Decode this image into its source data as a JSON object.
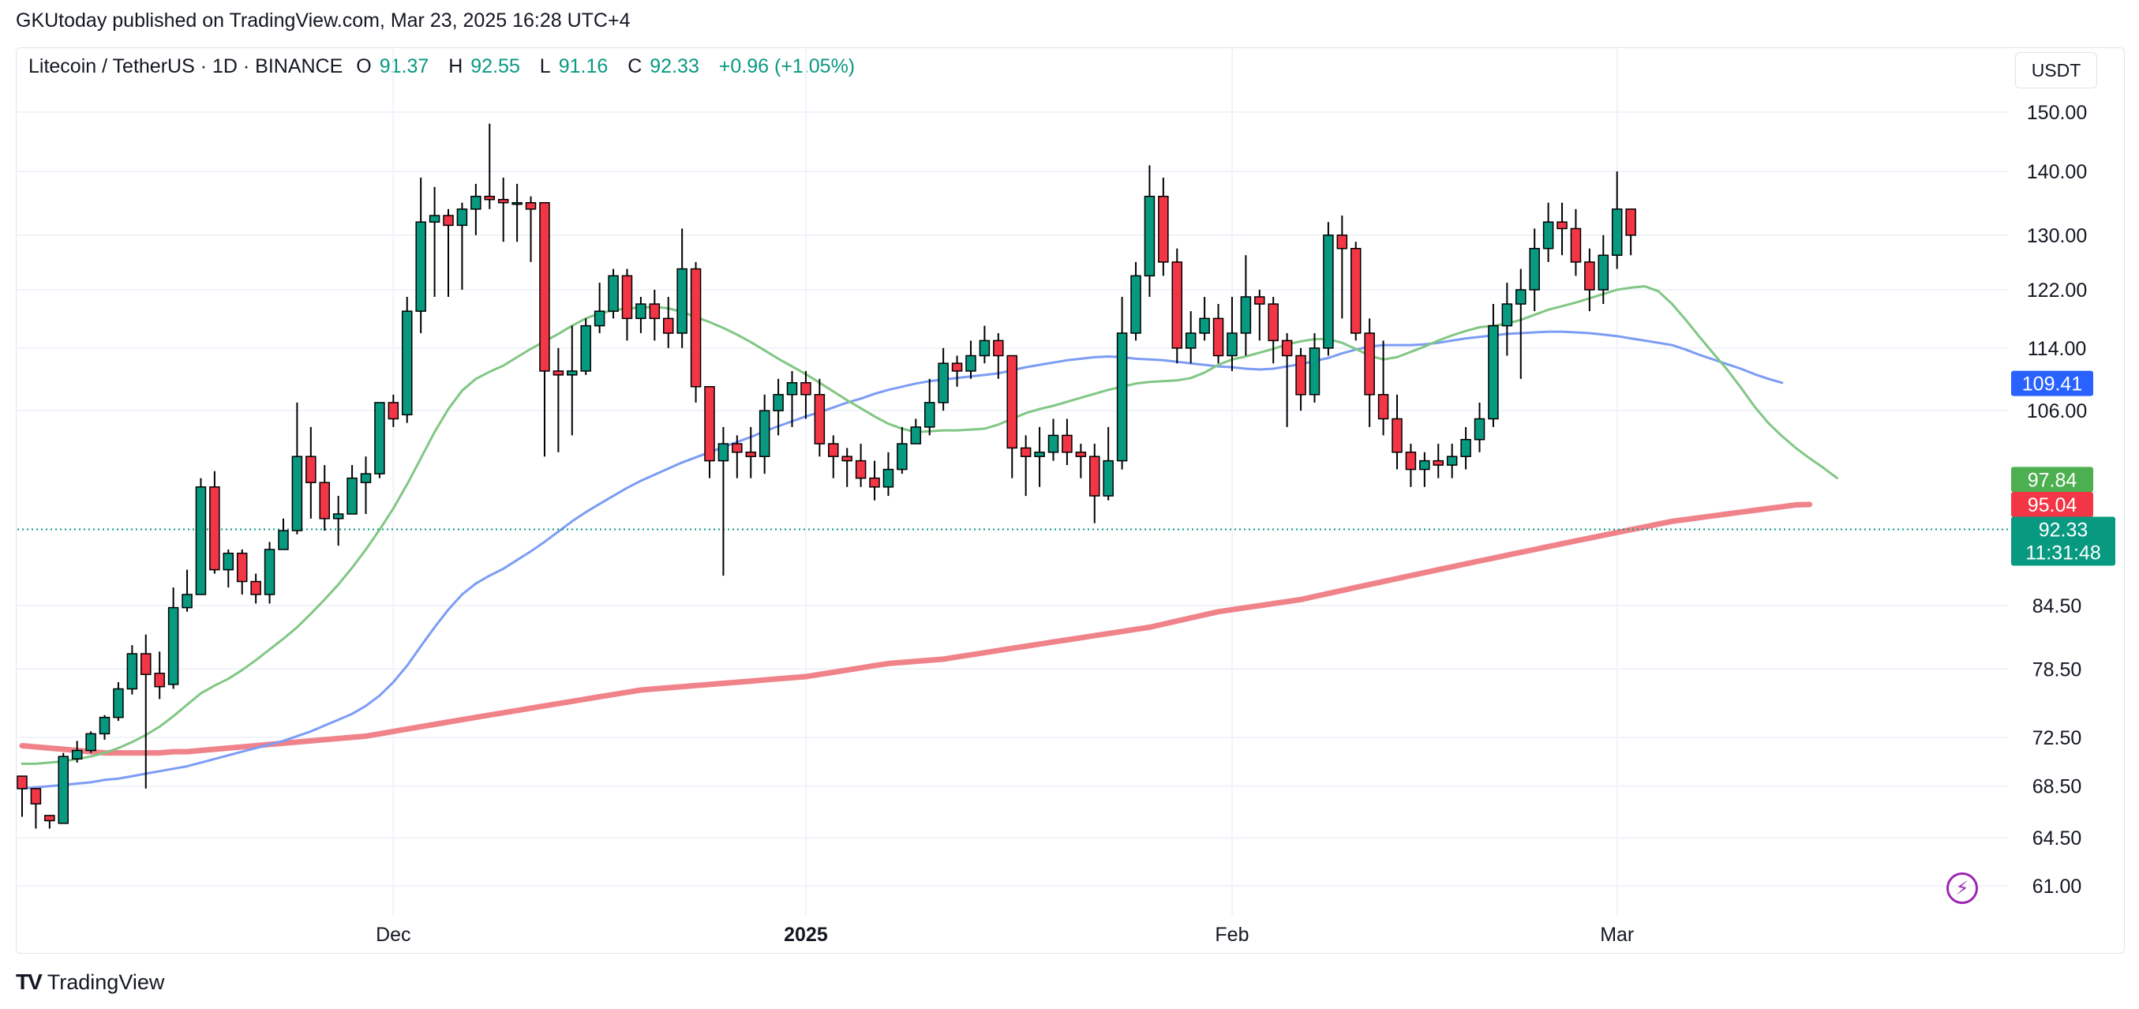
{
  "header": {
    "published": "GKUtoday published on TradingView.com, Mar 23, 2025 16:28 UTC+4",
    "symbol": "Litecoin / TetherUS · 1D · BINANCE",
    "o_label": "O",
    "o_value": "91.37",
    "h_label": "H",
    "h_value": "92.55",
    "l_label": "L",
    "l_value": "91.16",
    "c_label": "C",
    "c_value": "92.33",
    "change": "+0.96 (+1.05%)"
  },
  "currency_button": "USDT",
  "brand": {
    "logo_text": "TV",
    "name": "TradingView"
  },
  "colors": {
    "up": "#089981",
    "down": "#f23645",
    "ma_fast": "#81c784",
    "ma_mid": "#7c9cf5",
    "ma_slow": "#f0828a",
    "grid": "#f0f3fa"
  },
  "chart_data": {
    "type": "candlestick",
    "y_scale": "log",
    "y_ticks": [
      "150.00",
      "140.00",
      "130.00",
      "122.00",
      "114.00",
      "106.00",
      "84.50",
      "78.50",
      "72.50",
      "68.50",
      "64.50",
      "61.00"
    ],
    "x_ticks": [
      {
        "label": "Dec",
        "bar": 27,
        "bold": false
      },
      {
        "label": "2025",
        "bar": 57,
        "bold": true
      },
      {
        "label": "Feb",
        "bar": 88,
        "bold": false
      },
      {
        "label": "Mar",
        "bar": 116,
        "bold": false
      }
    ],
    "candles": [
      [
        69.3,
        68.3,
        66.1,
        69.3
      ],
      [
        68.3,
        67.1,
        65.2,
        68.3
      ],
      [
        66.2,
        65.8,
        65.2,
        65.8
      ],
      [
        65.6,
        70.9,
        65.6,
        71.2
      ],
      [
        70.7,
        71.4,
        70.4,
        72.2
      ],
      [
        71.4,
        72.8,
        71.2,
        73.0
      ],
      [
        72.8,
        74.2,
        72.3,
        74.4
      ],
      [
        74.2,
        76.7,
        73.9,
        77.3
      ],
      [
        76.7,
        79.9,
        76.2,
        80.7
      ],
      [
        79.9,
        78.0,
        68.3,
        81.7
      ],
      [
        78.1,
        76.9,
        75.8,
        80.1
      ],
      [
        77.1,
        84.3,
        76.7,
        86.3
      ],
      [
        84.3,
        85.6,
        83.9,
        88.1
      ],
      [
        85.6,
        97.0,
        85.6,
        98.0
      ],
      [
        97.0,
        88.1,
        87.7,
        98.8
      ],
      [
        88.1,
        89.8,
        86.3,
        90.2
      ],
      [
        89.8,
        86.9,
        85.6,
        90.2
      ],
      [
        86.9,
        85.6,
        84.7,
        87.7
      ],
      [
        85.6,
        90.2,
        84.7,
        91.0
      ],
      [
        90.2,
        92.2,
        90.2,
        93.5
      ],
      [
        92.2,
        100.5,
        91.8,
        107.0
      ],
      [
        100.5,
        97.5,
        93.5,
        104.0
      ],
      [
        97.5,
        93.5,
        92.2,
        99.5
      ],
      [
        93.5,
        94.0,
        90.6,
        96.0
      ],
      [
        94.0,
        98.0,
        94.0,
        99.5
      ],
      [
        97.5,
        98.5,
        94.0,
        100.5
      ],
      [
        98.5,
        107.0,
        98.0,
        107.0
      ],
      [
        107.0,
        105.0,
        104.0,
        108.0
      ],
      [
        105.5,
        119.0,
        104.5,
        121.0
      ],
      [
        119.0,
        132.0,
        116.0,
        139.0
      ],
      [
        132.0,
        133.0,
        121.0,
        137.5
      ],
      [
        133.0,
        131.5,
        121.0,
        134.0
      ],
      [
        131.5,
        134.0,
        122.0,
        135.0
      ],
      [
        134.0,
        136.0,
        130.0,
        138.0
      ],
      [
        136.0,
        135.5,
        134.0,
        148.0
      ],
      [
        135.5,
        135.0,
        129.0,
        139.0
      ],
      [
        135.0,
        135.0,
        129.0,
        138.0
      ],
      [
        135.0,
        134.0,
        126.0,
        136.0
      ],
      [
        135.0,
        111.0,
        100.5,
        135.0
      ],
      [
        111.0,
        110.5,
        101.0,
        114.0
      ],
      [
        110.5,
        111.0,
        103.0,
        117.0
      ],
      [
        111.0,
        117.0,
        110.5,
        118.0
      ],
      [
        117.0,
        119.0,
        116.0,
        123.0
      ],
      [
        119.0,
        124.0,
        118.0,
        125.0
      ],
      [
        124.0,
        118.0,
        115.0,
        125.0
      ],
      [
        118.0,
        120.0,
        116.0,
        121.0
      ],
      [
        120.0,
        118.0,
        115.0,
        122.0
      ],
      [
        118.0,
        116.0,
        114.0,
        121.0
      ],
      [
        116.0,
        125.0,
        114.0,
        131.0
      ],
      [
        125.0,
        109.0,
        107.0,
        126.0
      ],
      [
        109.0,
        100.0,
        98.0,
        109.0
      ],
      [
        100.0,
        102.0,
        87.5,
        104.0
      ],
      [
        102.0,
        101.0,
        98.0,
        103.0
      ],
      [
        101.0,
        100.5,
        98.0,
        104.0
      ],
      [
        100.5,
        106.0,
        98.5,
        108.0
      ],
      [
        106.0,
        108.0,
        103.0,
        110.0
      ],
      [
        108.0,
        109.5,
        104.0,
        111.0
      ],
      [
        109.5,
        108.0,
        105.0,
        111.0
      ],
      [
        108.0,
        102.0,
        100.5,
        110.0
      ],
      [
        102.0,
        100.5,
        98.0,
        103.0
      ],
      [
        100.5,
        100.0,
        97.0,
        101.5
      ],
      [
        100.0,
        98.0,
        97.0,
        102.0
      ],
      [
        98.0,
        97.0,
        95.5,
        100.0
      ],
      [
        97.0,
        99.0,
        96.0,
        101.0
      ],
      [
        99.0,
        102.0,
        98.5,
        104.0
      ],
      [
        102.0,
        104.0,
        102.0,
        105.0
      ],
      [
        104.0,
        107.0,
        103.0,
        110.0
      ],
      [
        107.0,
        112.0,
        106.0,
        114.0
      ],
      [
        112.0,
        111.0,
        109.0,
        113.0
      ],
      [
        111.0,
        113.0,
        110.0,
        115.0
      ],
      [
        113.0,
        115.0,
        112.0,
        117.0
      ],
      [
        115.0,
        113.0,
        110.0,
        116.0
      ],
      [
        113.0,
        101.5,
        98.0,
        113.0
      ],
      [
        101.5,
        100.5,
        96.0,
        103.0
      ],
      [
        100.5,
        101.0,
        97.0,
        104.0
      ],
      [
        101.0,
        103.0,
        100.0,
        105.0
      ],
      [
        103.0,
        101.0,
        99.5,
        105.0
      ],
      [
        101.0,
        100.5,
        98.0,
        102.0
      ],
      [
        100.5,
        96.0,
        93.0,
        102.0
      ],
      [
        96.0,
        100.0,
        95.5,
        104.0
      ],
      [
        100.0,
        116.0,
        99.0,
        121.0
      ],
      [
        116.0,
        124.0,
        115.0,
        126.0
      ],
      [
        124.0,
        136.0,
        121.0,
        141.0
      ],
      [
        136.0,
        126.0,
        124.0,
        139.0
      ],
      [
        126.0,
        114.0,
        112.0,
        128.0
      ],
      [
        114.0,
        116.0,
        112.0,
        119.0
      ],
      [
        116.0,
        118.0,
        115.0,
        121.0
      ],
      [
        118.0,
        113.0,
        112.0,
        120.0
      ],
      [
        113.0,
        116.0,
        111.0,
        121.0
      ],
      [
        116.0,
        121.0,
        113.0,
        127.0
      ],
      [
        121.0,
        120.0,
        115.0,
        122.0
      ],
      [
        120.0,
        115.0,
        112.0,
        121.0
      ],
      [
        115.0,
        113.0,
        104.0,
        116.0
      ],
      [
        113.0,
        108.0,
        106.0,
        114.0
      ],
      [
        108.0,
        114.0,
        107.0,
        116.0
      ],
      [
        114.0,
        130.0,
        113.0,
        132.0
      ],
      [
        130.0,
        128.0,
        118.0,
        133.0
      ],
      [
        128.0,
        116.0,
        115.0,
        129.0
      ],
      [
        116.0,
        108.0,
        104.0,
        118.0
      ],
      [
        108.0,
        105.0,
        103.0,
        115.0
      ],
      [
        105.0,
        101.0,
        99.0,
        108.0
      ],
      [
        101.0,
        99.0,
        97.0,
        102.0
      ],
      [
        99.0,
        100.0,
        97.0,
        101.0
      ],
      [
        100.0,
        99.5,
        98.0,
        102.0
      ],
      [
        99.5,
        100.5,
        98.0,
        102.0
      ],
      [
        100.5,
        102.5,
        99.0,
        104.0
      ],
      [
        102.5,
        105.0,
        101.0,
        107.0
      ],
      [
        105.0,
        117.0,
        104.0,
        120.0
      ],
      [
        117.0,
        120.0,
        113.0,
        123.0
      ],
      [
        120.0,
        122.0,
        110.0,
        125.0
      ],
      [
        122.0,
        128.0,
        119.0,
        131.0
      ],
      [
        128.0,
        132.0,
        126.0,
        135.0
      ],
      [
        132.0,
        131.0,
        127.0,
        135.0
      ],
      [
        131.0,
        126.0,
        124.0,
        134.0
      ],
      [
        126.0,
        122.0,
        119.0,
        128.0
      ],
      [
        122.0,
        127.0,
        120.0,
        130.0
      ],
      [
        127.0,
        134.0,
        125.0,
        140.0
      ],
      [
        134.0,
        130.0,
        127.0,
        134.0
      ]
    ],
    "ma_fast": {
      "start_bar": 0,
      "values": [
        70.3,
        70.3,
        70.4,
        70.5,
        70.7,
        70.9,
        71.2,
        71.6,
        72.1,
        72.7,
        73.4,
        74.3,
        75.3,
        76.3,
        77.0,
        77.6,
        78.4,
        79.3,
        80.3,
        81.3,
        82.4,
        83.7,
        85.1,
        86.6,
        88.3,
        90.2,
        92.3,
        94.6,
        97.3,
        100.3,
        103.4,
        106.2,
        108.5,
        110.0,
        110.9,
        111.7,
        112.8,
        113.9,
        114.9,
        115.9,
        117.0,
        118.0,
        118.7,
        119.1,
        119.4,
        119.5,
        119.6,
        119.4,
        118.9,
        118.2,
        117.5,
        116.7,
        115.8,
        114.8,
        113.7,
        112.6,
        111.6,
        110.6,
        109.5,
        108.4,
        107.3,
        106.3,
        105.3,
        104.4,
        103.8,
        103.4,
        103.5,
        103.6,
        103.6,
        103.7,
        103.8,
        104.3,
        105.0,
        105.7,
        106.2,
        106.6,
        107.1,
        107.6,
        108.1,
        108.6,
        109.0,
        109.4,
        109.6,
        109.7,
        109.8,
        110.1,
        110.8,
        111.8,
        112.5,
        112.9,
        113.4,
        113.9,
        114.5,
        114.9,
        115.2,
        115.2,
        114.7,
        113.9,
        113.0,
        112.5,
        112.8,
        113.5,
        114.2,
        115.0,
        115.7,
        116.3,
        116.8,
        117.0,
        117.3,
        117.8,
        118.5,
        119.2,
        119.7,
        120.2,
        120.8,
        121.4,
        122.0,
        122.3,
        122.5,
        121.8,
        120.0,
        117.8,
        115.5,
        113.3,
        111.2,
        108.9,
        106.5,
        104.5,
        102.9,
        101.5,
        100.3,
        99.2,
        98.0
      ]
    },
    "ma_mid": {
      "start_bar": 0,
      "values": [
        68.3,
        68.4,
        68.5,
        68.6,
        68.7,
        68.8,
        69.0,
        69.1,
        69.3,
        69.5,
        69.7,
        69.9,
        70.1,
        70.4,
        70.7,
        71.0,
        71.3,
        71.6,
        71.9,
        72.2,
        72.6,
        73.0,
        73.5,
        74.0,
        74.5,
        75.2,
        76.1,
        77.3,
        78.8,
        80.6,
        82.4,
        84.1,
        85.6,
        86.7,
        87.5,
        88.2,
        89.1,
        90.0,
        91.0,
        92.1,
        93.2,
        94.2,
        95.1,
        96.0,
        96.9,
        97.7,
        98.4,
        99.1,
        99.8,
        100.4,
        101.0,
        101.6,
        102.2,
        102.8,
        103.5,
        104.1,
        104.7,
        105.3,
        105.8,
        106.4,
        107.0,
        107.5,
        108.1,
        108.6,
        109.0,
        109.4,
        109.7,
        109.9,
        110.1,
        110.3,
        110.5,
        110.7,
        111.1,
        111.5,
        111.8,
        112.1,
        112.4,
        112.6,
        112.8,
        112.9,
        112.8,
        112.6,
        112.5,
        112.4,
        112.2,
        112.0,
        111.8,
        111.6,
        111.5,
        111.3,
        111.2,
        111.3,
        111.6,
        111.9,
        112.3,
        112.7,
        113.3,
        113.8,
        114.2,
        114.4,
        114.4,
        114.4,
        114.5,
        114.7,
        115.0,
        115.3,
        115.5,
        115.7,
        115.9,
        116.0,
        116.1,
        116.2,
        116.2,
        116.1,
        116.0,
        115.8,
        115.6,
        115.3,
        115.0,
        114.7,
        114.4,
        113.8,
        113.1,
        112.5,
        111.9,
        111.3,
        110.6,
        110.0,
        109.5
      ]
    },
    "ma_slow": {
      "start_bar": 0,
      "values": [
        71.8,
        71.7,
        71.6,
        71.5,
        71.4,
        71.3,
        71.2,
        71.2,
        71.2,
        71.2,
        71.2,
        71.3,
        71.3,
        71.4,
        71.5,
        71.6,
        71.7,
        71.8,
        71.9,
        72.0,
        72.1,
        72.2,
        72.3,
        72.4,
        72.5,
        72.6,
        72.8,
        73.0,
        73.2,
        73.4,
        73.6,
        73.8,
        74.0,
        74.2,
        74.4,
        74.6,
        74.8,
        75.0,
        75.2,
        75.4,
        75.6,
        75.8,
        76.0,
        76.2,
        76.4,
        76.6,
        76.7,
        76.8,
        76.9,
        77.0,
        77.1,
        77.2,
        77.3,
        77.4,
        77.5,
        77.6,
        77.7,
        77.8,
        78.0,
        78.2,
        78.4,
        78.6,
        78.8,
        79.0,
        79.1,
        79.2,
        79.3,
        79.4,
        79.6,
        79.8,
        80.0,
        80.2,
        80.4,
        80.6,
        80.8,
        81.0,
        81.2,
        81.4,
        81.6,
        81.8,
        82.0,
        82.2,
        82.4,
        82.7,
        83.0,
        83.3,
        83.6,
        83.9,
        84.1,
        84.3,
        84.5,
        84.7,
        84.9,
        85.1,
        85.4,
        85.7,
        86.0,
        86.3,
        86.6,
        86.9,
        87.2,
        87.5,
        87.8,
        88.1,
        88.4,
        88.7,
        89.0,
        89.3,
        89.6,
        89.9,
        90.2,
        90.5,
        90.8,
        91.1,
        91.4,
        91.7,
        92.0,
        92.3,
        92.6,
        92.9,
        93.2,
        93.4,
        93.6,
        93.8,
        94.0,
        94.2,
        94.4,
        94.6,
        94.8,
        95.0,
        95.04
      ]
    },
    "price_tags": [
      {
        "label": "109.41",
        "value": 109.41,
        "color": "#2962ff"
      },
      {
        "label": "97.84",
        "value": 97.84,
        "color": "#4caf50"
      },
      {
        "label": "95.04",
        "value": 95.04,
        "color": "#f23645"
      },
      {
        "label": "92.33",
        "value": 92.33,
        "color": "#089981",
        "sub": "11:31:48"
      }
    ],
    "last_price": 92.33
  }
}
